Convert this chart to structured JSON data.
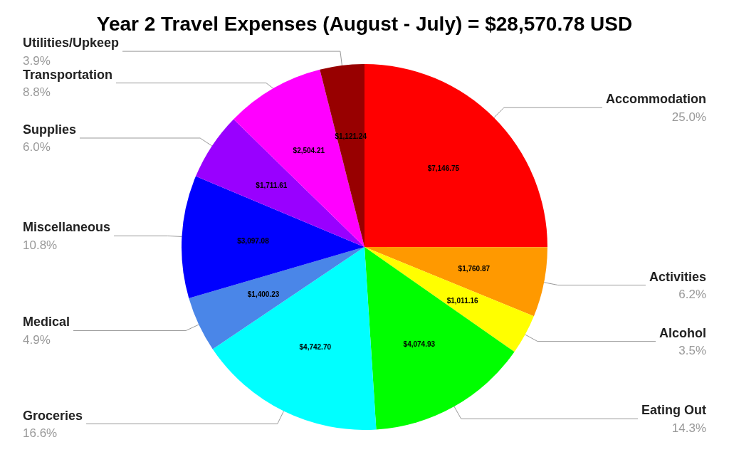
{
  "chart_data": {
    "type": "pie",
    "title": "Year 2 Travel Expenses (August - July) = $28,570.78 USD",
    "categories": [
      "Accommodation",
      "Activities",
      "Alcohol",
      "Eating Out",
      "Groceries",
      "Medical",
      "Miscellaneous",
      "Supplies",
      "Transportation",
      "Utilities/Upkeep"
    ],
    "values": [
      7146.75,
      1760.87,
      1011.16,
      4074.93,
      4742.7,
      1400.23,
      3097.08,
      1711.61,
      2504.21,
      1121.24
    ],
    "value_labels": [
      "$7,146.75",
      "$1,760.87",
      "$1,011.16",
      "$4,074.93",
      "$4,742.70",
      "$1,400.23",
      "$3,097.08",
      "$1,711.61",
      "$2,504.21",
      "$1,121.24"
    ],
    "colors": [
      "#ff0000",
      "#ff9900",
      "#ffff00",
      "#00ff00",
      "#00ffff",
      "#4a86e8",
      "#0000ff",
      "#9900ff",
      "#ff00ff",
      "#980000"
    ],
    "annotations": [
      "25.0%",
      "6.2%",
      "3.5%",
      "14.3%",
      "16.6%",
      "4.9%",
      "10.8%",
      "6.0%",
      "8.8%",
      "3.9%"
    ],
    "legend": false
  }
}
